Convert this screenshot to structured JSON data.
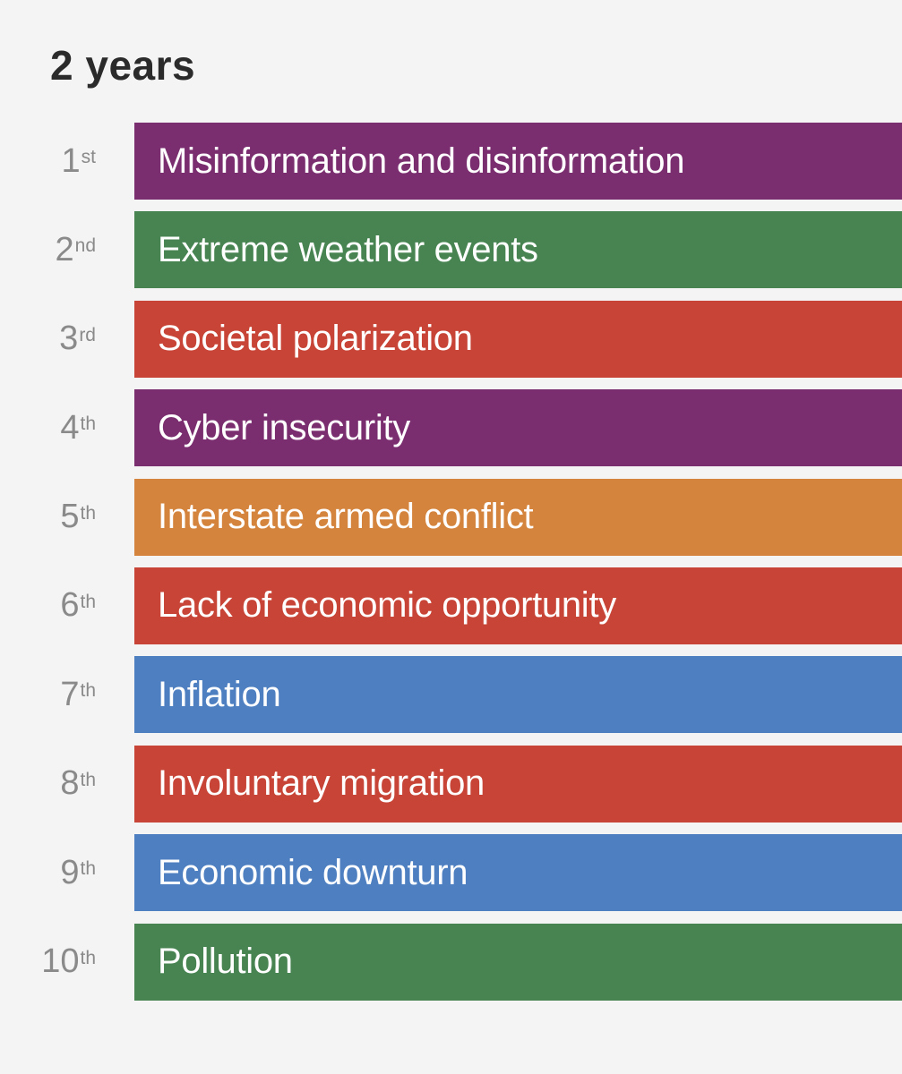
{
  "chart_data": {
    "type": "table",
    "title": "2 years",
    "rows": [
      {
        "rank": "1",
        "suffix": "st",
        "label": "Misinformation and disinformation",
        "color": "#7b2e6f"
      },
      {
        "rank": "2",
        "suffix": "nd",
        "label": "Extreme weather events",
        "color": "#478452"
      },
      {
        "rank": "3",
        "suffix": "rd",
        "label": "Societal polarization",
        "color": "#c74436"
      },
      {
        "rank": "4",
        "suffix": "th",
        "label": "Cyber insecurity",
        "color": "#7b2e6f"
      },
      {
        "rank": "5",
        "suffix": "th",
        "label": "Interstate armed conflict",
        "color": "#d4843d"
      },
      {
        "rank": "6",
        "suffix": "th",
        "label": "Lack of economic opportunity",
        "color": "#c74436"
      },
      {
        "rank": "7",
        "suffix": "th",
        "label": "Inflation",
        "color": "#4d7fc1"
      },
      {
        "rank": "8",
        "suffix": "th",
        "label": "Involuntary migration",
        "color": "#c74436"
      },
      {
        "rank": "9",
        "suffix": "th",
        "label": "Economic downturn",
        "color": "#4d7fc1"
      },
      {
        "rank": "10",
        "suffix": "th",
        "label": "Pollution",
        "color": "#478452"
      }
    ]
  }
}
